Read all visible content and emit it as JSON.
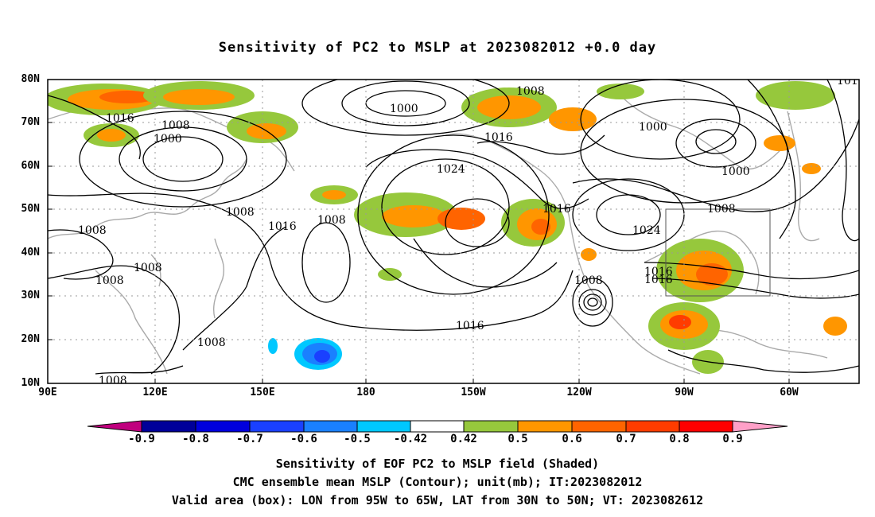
{
  "title": "Sensitivity of PC2 to MSLP at 2023082012 +0.0 day",
  "map": {
    "lat_labels": [
      "80N",
      "70N",
      "60N",
      "50N",
      "40N",
      "30N",
      "20N",
      "10N"
    ],
    "lon_labels": [
      "90E",
      "120E",
      "150E",
      "180",
      "150W",
      "120W",
      "90W",
      "60W"
    ],
    "contour_labels": [
      "1016",
      "1008",
      "1000",
      "1000",
      "1008",
      "1016",
      "1024",
      "1016",
      "1024",
      "1008",
      "1000",
      "1000",
      "1008",
      "1008",
      "1008",
      "1008",
      "1008",
      "1016",
      "1008",
      "1016",
      "1016",
      "1008",
      "1016",
      "1008",
      "101"
    ],
    "box_region": "LON 95W–65W, LAT 30N–50N"
  },
  "colorbar": {
    "labels": [
      "-0.9",
      "-0.8",
      "-0.7",
      "-0.6",
      "-0.5",
      "-0.42",
      "0.42",
      "0.5",
      "0.6",
      "0.7",
      "0.8",
      "0.9"
    ],
    "colors": [
      "#000099",
      "#0000dd",
      "#1a40ff",
      "#1a80ff",
      "#00c8ff",
      "#ffffff",
      "#96c83c",
      "#ff9600",
      "#ff6400",
      "#ff3c00",
      "#ff0000"
    ],
    "low_end_color": "#c0007e",
    "high_end_color": "#ffa0c8"
  },
  "captions": [
    "Sensitivity of EOF PC2 to MSLP field (Shaded)",
    "CMC ensemble mean MSLP (Contour); unit(mb); IT:2023082012",
    "Valid area (box): LON from 95W to 65W, LAT from 30N to 50N; VT: 2023082612"
  ]
}
